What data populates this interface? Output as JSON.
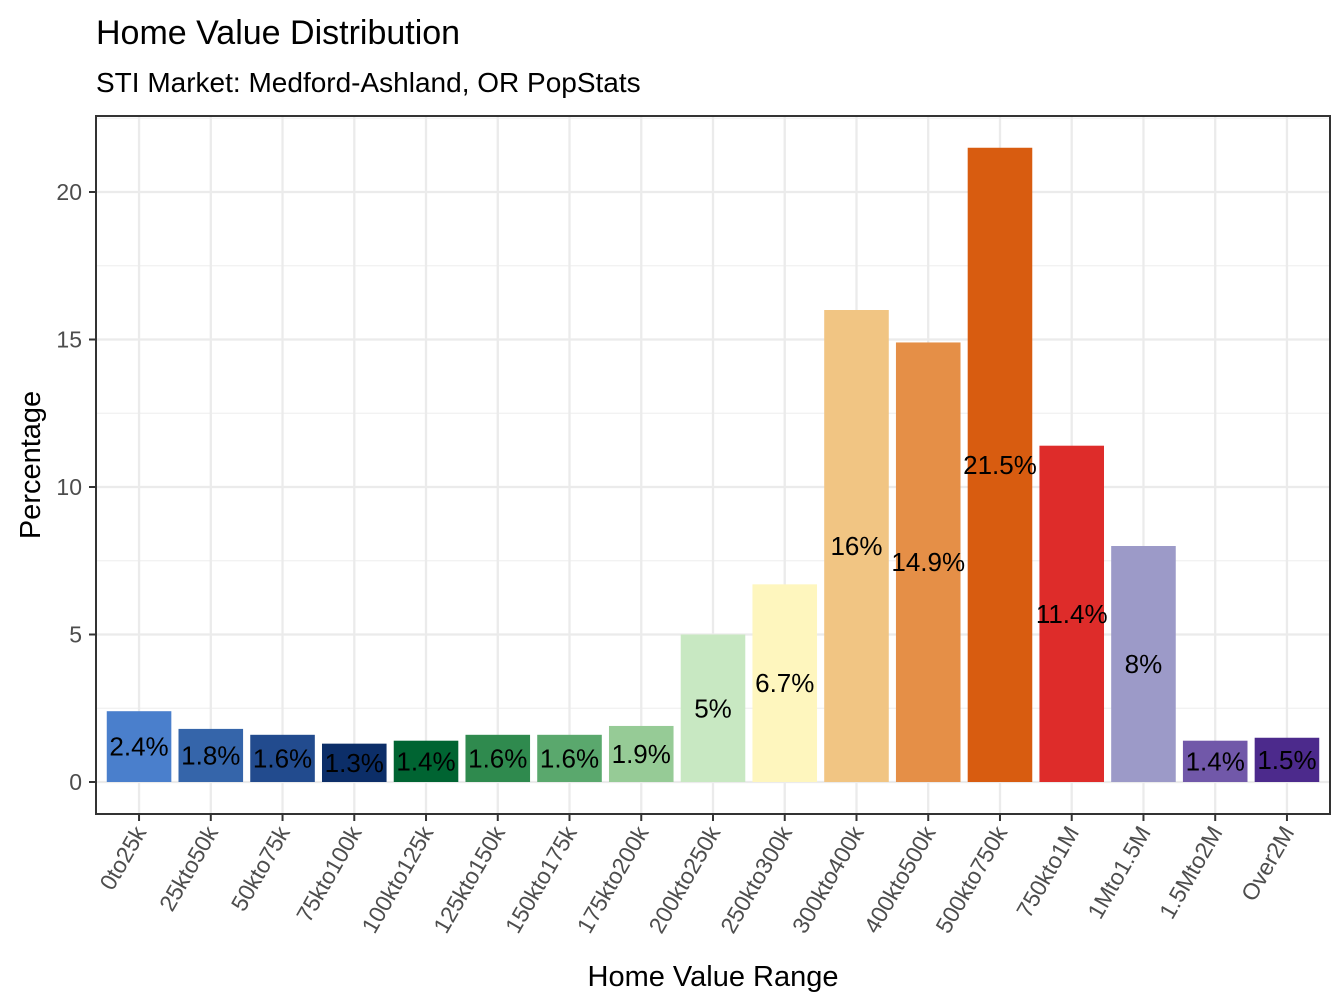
{
  "chart_data": {
    "type": "bar",
    "title": "Home Value Distribution",
    "subtitle": "STI Market: Medford-Ashland, OR PopStats",
    "xlabel": "Home Value Range",
    "ylabel": "Percentage",
    "ylim": [
      0,
      22.6
    ],
    "yticks": [
      0,
      5,
      10,
      15,
      20
    ],
    "grid": true,
    "categories": [
      "0to25k",
      "25kto50k",
      "50kto75k",
      "75kto100k",
      "100kto125k",
      "125kto150k",
      "150kto175k",
      "175kto200k",
      "200kto250k",
      "250kto300k",
      "300kto400k",
      "400kto500k",
      "500kto750k",
      "750kto1M",
      "1Mto1.5M",
      "1.5Mto2M",
      "Over2M"
    ],
    "values": [
      2.4,
      1.8,
      1.6,
      1.3,
      1.4,
      1.6,
      1.6,
      1.9,
      5.0,
      6.7,
      16.0,
      14.9,
      21.5,
      11.4,
      8.0,
      1.4,
      1.5
    ],
    "labels": [
      "2.4%",
      "1.8%",
      "1.6%",
      "1.3%",
      "1.4%",
      "1.6%",
      "1.6%",
      "1.9%",
      "5%",
      "6.7%",
      "16%",
      "14.9%",
      "21.5%",
      "11.4%",
      "8%",
      "1.4%",
      "1.5%"
    ],
    "colors": [
      "#4a7fcc",
      "#3565aa",
      "#224b8e",
      "#0c2e68",
      "#006432",
      "#2f8a4e",
      "#5aa86d",
      "#96cb96",
      "#c8e8c2",
      "#fef6be",
      "#f1c583",
      "#e58f47",
      "#d85c10",
      "#de2c2a",
      "#9c9ac8",
      "#7158a9",
      "#4c2a8c"
    ],
    "legend": "none"
  }
}
